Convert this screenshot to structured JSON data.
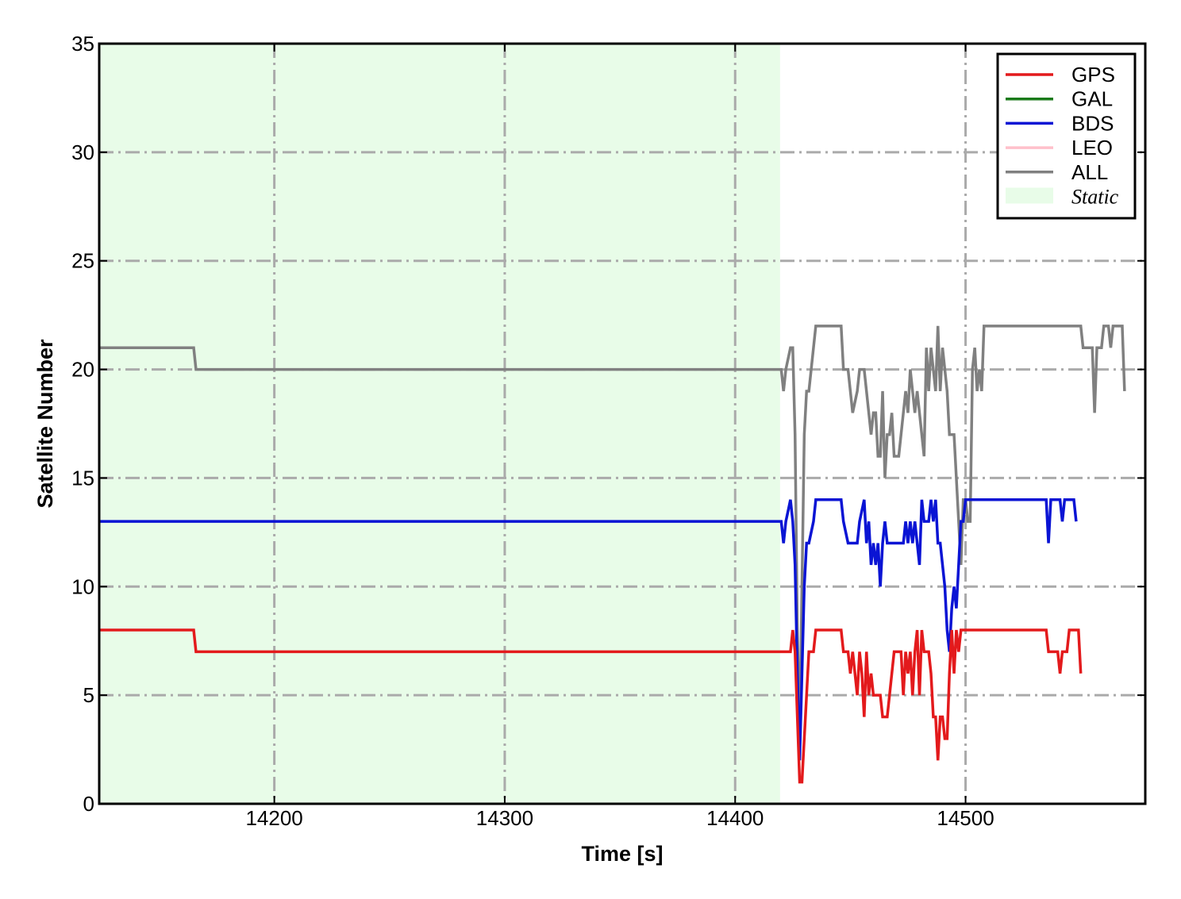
{
  "chart_data": {
    "type": "line",
    "title": "",
    "xlabel": "Time [s]",
    "ylabel": "Satellite Number",
    "xlim": [
      14124,
      14578
    ],
    "ylim": [
      0,
      35
    ],
    "xticks": [
      14200,
      14300,
      14400,
      14500
    ],
    "yticks": [
      0,
      5,
      10,
      15,
      20,
      25,
      30,
      35
    ],
    "grid": true,
    "grid_style": "dash-dot",
    "legend_position": "top-right",
    "shaded_regions": [
      {
        "name": "Static",
        "x_start": 14124,
        "x_end": 14419.5,
        "color": "#e8fce8"
      }
    ],
    "legend": [
      {
        "label": "GPS",
        "color": "#e31a1c",
        "kind": "line",
        "italic": false
      },
      {
        "label": "GAL",
        "color": "#1a7a1a",
        "kind": "line",
        "italic": false
      },
      {
        "label": "BDS",
        "color": "#0a14d4",
        "kind": "line",
        "italic": false
      },
      {
        "label": "LEO",
        "color": "#ffc0cb",
        "kind": "line",
        "italic": false
      },
      {
        "label": "ALL",
        "color": "#808080",
        "kind": "line",
        "italic": false
      },
      {
        "label": "Static",
        "color": "#e8fce8",
        "kind": "patch",
        "italic": true
      }
    ],
    "series": [
      {
        "name": "ALL",
        "color": "#808080",
        "points": [
          [
            14124,
            21
          ],
          [
            14165,
            21
          ],
          [
            14166,
            20
          ],
          [
            14420,
            20
          ],
          [
            14421,
            19
          ],
          [
            14422,
            20
          ],
          [
            14424,
            21
          ],
          [
            14425,
            21
          ],
          [
            14426,
            17
          ],
          [
            14427,
            8
          ],
          [
            14428,
            3
          ],
          [
            14429,
            10
          ],
          [
            14430,
            17
          ],
          [
            14431,
            19
          ],
          [
            14432,
            19
          ],
          [
            14434,
            21
          ],
          [
            14435,
            22
          ],
          [
            14446,
            22
          ],
          [
            14447,
            20
          ],
          [
            14449,
            20
          ],
          [
            14451,
            18
          ],
          [
            14453,
            19
          ],
          [
            14454,
            20
          ],
          [
            14456,
            20
          ],
          [
            14457,
            19
          ],
          [
            14459,
            17
          ],
          [
            14460,
            18
          ],
          [
            14461,
            18
          ],
          [
            14462,
            16
          ],
          [
            14463,
            16
          ],
          [
            14464,
            19
          ],
          [
            14465,
            15
          ],
          [
            14466,
            17
          ],
          [
            14467,
            17
          ],
          [
            14468,
            18
          ],
          [
            14469,
            16
          ],
          [
            14471,
            16
          ],
          [
            14472,
            17
          ],
          [
            14473,
            18
          ],
          [
            14474,
            19
          ],
          [
            14475,
            18
          ],
          [
            14476,
            20
          ],
          [
            14477,
            19
          ],
          [
            14478,
            18
          ],
          [
            14479,
            19
          ],
          [
            14480,
            18
          ],
          [
            14481,
            17
          ],
          [
            14482,
            16
          ],
          [
            14483,
            21
          ],
          [
            14484,
            19
          ],
          [
            14485,
            21
          ],
          [
            14486,
            20
          ],
          [
            14487,
            19
          ],
          [
            14488,
            22
          ],
          [
            14489,
            19
          ],
          [
            14490,
            21
          ],
          [
            14491,
            20
          ],
          [
            14492,
            19
          ],
          [
            14493,
            17
          ],
          [
            14495,
            17
          ],
          [
            14496,
            15
          ],
          [
            14497,
            13
          ],
          [
            14498,
            11
          ],
          [
            14499,
            14
          ],
          [
            14500,
            14
          ],
          [
            14501,
            13
          ],
          [
            14502,
            13
          ],
          [
            14503,
            20
          ],
          [
            14504,
            21
          ],
          [
            14505,
            19
          ],
          [
            14506,
            20
          ],
          [
            14507,
            19
          ],
          [
            14508,
            22
          ],
          [
            14550,
            22
          ],
          [
            14551,
            21
          ],
          [
            14555,
            21
          ],
          [
            14556,
            18
          ],
          [
            14557,
            21
          ],
          [
            14559,
            21
          ],
          [
            14560,
            22
          ],
          [
            14562,
            22
          ],
          [
            14563,
            21
          ],
          [
            14564,
            22
          ],
          [
            14568,
            22
          ],
          [
            14569,
            19
          ]
        ]
      },
      {
        "name": "BDS",
        "color": "#0a14d4",
        "points": [
          [
            14124,
            13
          ],
          [
            14420,
            13
          ],
          [
            14421,
            12
          ],
          [
            14422,
            13
          ],
          [
            14424,
            14
          ],
          [
            14425,
            13
          ],
          [
            14426,
            11
          ],
          [
            14427,
            6
          ],
          [
            14428,
            2
          ],
          [
            14429,
            6
          ],
          [
            14430,
            10
          ],
          [
            14431,
            12
          ],
          [
            14432,
            12
          ],
          [
            14434,
            13
          ],
          [
            14435,
            14
          ],
          [
            14446,
            14
          ],
          [
            14447,
            13
          ],
          [
            14449,
            12
          ],
          [
            14453,
            12
          ],
          [
            14454,
            13
          ],
          [
            14456,
            14
          ],
          [
            14457,
            12
          ],
          [
            14458,
            13
          ],
          [
            14459,
            11
          ],
          [
            14460,
            12
          ],
          [
            14461,
            11
          ],
          [
            14462,
            12
          ],
          [
            14463,
            10
          ],
          [
            14464,
            12
          ],
          [
            14465,
            13
          ],
          [
            14466,
            12
          ],
          [
            14473,
            12
          ],
          [
            14474,
            13
          ],
          [
            14475,
            12
          ],
          [
            14476,
            13
          ],
          [
            14477,
            12
          ],
          [
            14478,
            13
          ],
          [
            14479,
            12
          ],
          [
            14480,
            11
          ],
          [
            14481,
            14
          ],
          [
            14482,
            13
          ],
          [
            14484,
            13
          ],
          [
            14485,
            14
          ],
          [
            14486,
            13
          ],
          [
            14487,
            14
          ],
          [
            14488,
            12
          ],
          [
            14489,
            12
          ],
          [
            14490,
            11
          ],
          [
            14491,
            10
          ],
          [
            14492,
            8
          ],
          [
            14493,
            7
          ],
          [
            14494,
            9
          ],
          [
            14495,
            10
          ],
          [
            14496,
            9
          ],
          [
            14497,
            11
          ],
          [
            14498,
            13
          ],
          [
            14499,
            13
          ],
          [
            14500,
            14
          ],
          [
            14535,
            14
          ],
          [
            14536,
            12
          ],
          [
            14537,
            14
          ],
          [
            14541,
            14
          ],
          [
            14542,
            13
          ],
          [
            14543,
            14
          ],
          [
            14547,
            14
          ],
          [
            14548,
            13
          ]
        ]
      },
      {
        "name": "GPS",
        "color": "#e31a1c",
        "points": [
          [
            14124,
            8
          ],
          [
            14165,
            8
          ],
          [
            14166,
            7
          ],
          [
            14424,
            7
          ],
          [
            14425,
            8
          ],
          [
            14426,
            7
          ],
          [
            14427,
            4
          ],
          [
            14428,
            1
          ],
          [
            14429,
            1
          ],
          [
            14430,
            3
          ],
          [
            14431,
            5
          ],
          [
            14432,
            7
          ],
          [
            14434,
            7
          ],
          [
            14435,
            8
          ],
          [
            14446,
            8
          ],
          [
            14447,
            7
          ],
          [
            14449,
            7
          ],
          [
            14450,
            6
          ],
          [
            14451,
            7
          ],
          [
            14452,
            6
          ],
          [
            14453,
            5
          ],
          [
            14454,
            7
          ],
          [
            14455,
            6
          ],
          [
            14456,
            4
          ],
          [
            14457,
            7
          ],
          [
            14458,
            5
          ],
          [
            14459,
            6
          ],
          [
            14460,
            5
          ],
          [
            14463,
            5
          ],
          [
            14464,
            4
          ],
          [
            14466,
            4
          ],
          [
            14467,
            5
          ],
          [
            14468,
            6
          ],
          [
            14469,
            7
          ],
          [
            14472,
            7
          ],
          [
            14473,
            5
          ],
          [
            14474,
            7
          ],
          [
            14475,
            6
          ],
          [
            14476,
            7
          ],
          [
            14477,
            5
          ],
          [
            14478,
            7
          ],
          [
            14479,
            8
          ],
          [
            14480,
            5
          ],
          [
            14481,
            8
          ],
          [
            14482,
            7
          ],
          [
            14484,
            7
          ],
          [
            14485,
            6
          ],
          [
            14486,
            4
          ],
          [
            14487,
            4
          ],
          [
            14488,
            2
          ],
          [
            14489,
            4
          ],
          [
            14490,
            4
          ],
          [
            14491,
            3
          ],
          [
            14492,
            3
          ],
          [
            14493,
            6
          ],
          [
            14494,
            8
          ],
          [
            14495,
            6
          ],
          [
            14496,
            8
          ],
          [
            14497,
            7
          ],
          [
            14498,
            8
          ],
          [
            14535,
            8
          ],
          [
            14536,
            7
          ],
          [
            14540,
            7
          ],
          [
            14541,
            6
          ],
          [
            14542,
            7
          ],
          [
            14544,
            7
          ],
          [
            14545,
            8
          ],
          [
            14549,
            8
          ],
          [
            14550,
            6
          ]
        ]
      }
    ]
  }
}
